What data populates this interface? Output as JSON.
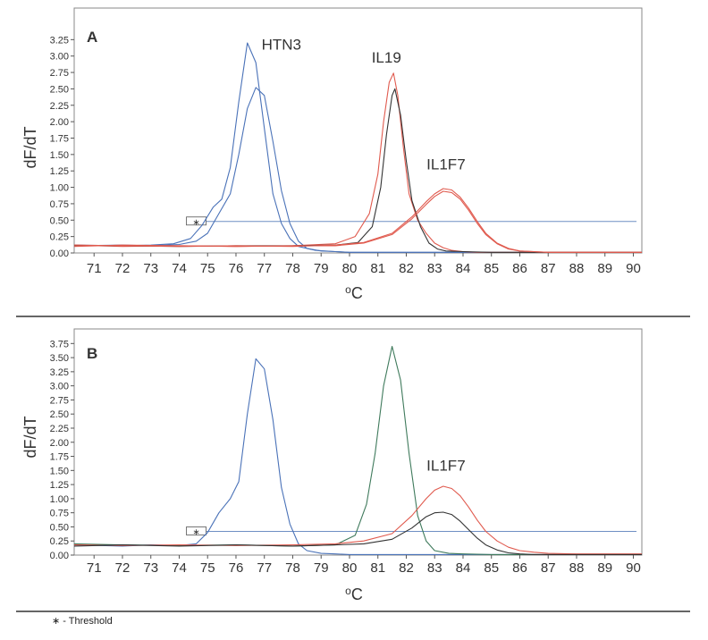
{
  "footnote": {
    "symbol": "∗",
    "text": "- Threshold"
  },
  "chart_data": [
    {
      "type": "line",
      "panel_label": "A",
      "xlabel": "oC",
      "ylabel": "dF/dT",
      "xlim": [
        70.3,
        90.3
      ],
      "ylim": [
        0,
        3.35
      ],
      "x_ticks": [
        71,
        72,
        73,
        74,
        75,
        76,
        77,
        78,
        79,
        80,
        81,
        82,
        83,
        84,
        85,
        86,
        87,
        88,
        89,
        90
      ],
      "y_ticks": [
        "0.00",
        "0.25",
        "0.50",
        "0.75",
        "1.00",
        "1.25",
        "1.50",
        "1.75",
        "2.00",
        "2.25",
        "2.50",
        "2.75",
        "3.00",
        "3.25"
      ],
      "threshold": {
        "y": 0.48,
        "marker": "∗",
        "marker_x": 74.6
      },
      "annotations": [
        {
          "text": "HTN3",
          "x": 77.6,
          "y": 3.1
        },
        {
          "text": "IL19",
          "x": 81.3,
          "y": 2.9
        },
        {
          "text": "IL1F7",
          "x": 83.4,
          "y": 1.27
        }
      ],
      "series": [
        {
          "color": "#4a72b8",
          "x": [
            70.3,
            72,
            73,
            73.8,
            74.4,
            74.8,
            75.2,
            75.5,
            75.8,
            76.1,
            76.4,
            76.7,
            77.0,
            77.3,
            77.6,
            77.9,
            78.2,
            78.8,
            79.5,
            80,
            82,
            84,
            86,
            88,
            90.3
          ],
          "y": [
            0.12,
            0.11,
            0.12,
            0.14,
            0.22,
            0.42,
            0.7,
            0.82,
            1.3,
            2.3,
            3.2,
            2.9,
            1.9,
            0.9,
            0.45,
            0.22,
            0.1,
            0.04,
            0.02,
            0.01,
            0.01,
            0.01,
            0.01,
            0.01,
            0.01
          ]
        },
        {
          "color": "#4a72b8",
          "x": [
            70.3,
            72,
            73,
            74,
            74.6,
            75.0,
            75.4,
            75.8,
            76.1,
            76.4,
            76.7,
            77.0,
            77.3,
            77.6,
            77.9,
            78.2,
            78.5,
            79.0,
            79.5,
            80,
            82,
            84,
            86,
            88,
            90.3
          ],
          "y": [
            0.11,
            0.12,
            0.11,
            0.13,
            0.18,
            0.3,
            0.6,
            0.9,
            1.5,
            2.2,
            2.52,
            2.4,
            1.7,
            0.95,
            0.45,
            0.18,
            0.07,
            0.03,
            0.02,
            0.01,
            0.01,
            0.01,
            0.01,
            0.01,
            0.01
          ]
        },
        {
          "color": "#e05a4e",
          "x": [
            70.3,
            72,
            74,
            76,
            78,
            79.5,
            80.2,
            80.7,
            81.0,
            81.2,
            81.4,
            81.55,
            81.7,
            81.9,
            82.1,
            82.4,
            82.7,
            83.0,
            83.3,
            83.6,
            84.0,
            84.5,
            85.0,
            85.5,
            86,
            87,
            88,
            90.3
          ],
          "y": [
            0.12,
            0.1,
            0.11,
            0.1,
            0.11,
            0.14,
            0.25,
            0.6,
            1.2,
            2.0,
            2.6,
            2.74,
            2.4,
            1.6,
            0.9,
            0.5,
            0.3,
            0.15,
            0.08,
            0.04,
            0.02,
            0.01,
            0.01,
            0.01,
            0.01,
            0.01,
            0.01,
            0.01
          ]
        },
        {
          "color": "#333333",
          "x": [
            70.3,
            72,
            74,
            76,
            78,
            79.5,
            80.3,
            80.8,
            81.1,
            81.3,
            81.5,
            81.6,
            81.8,
            82.0,
            82.2,
            82.5,
            82.8,
            83.1,
            83.4,
            84.0,
            85,
            86,
            88,
            90.3
          ],
          "y": [
            0.11,
            0.11,
            0.1,
            0.11,
            0.11,
            0.12,
            0.16,
            0.4,
            1.0,
            1.8,
            2.4,
            2.5,
            2.1,
            1.4,
            0.8,
            0.4,
            0.15,
            0.06,
            0.03,
            0.02,
            0.01,
            0.01,
            0.01,
            0.01
          ]
        },
        {
          "color": "#e05a4e",
          "x": [
            70.3,
            72,
            74,
            76,
            78,
            79.5,
            80.5,
            81.5,
            82.2,
            82.7,
            83.0,
            83.3,
            83.6,
            83.9,
            84.2,
            84.5,
            84.8,
            85.2,
            85.6,
            86.0,
            86.5,
            87,
            88,
            90.3
          ],
          "y": [
            0.12,
            0.11,
            0.1,
            0.11,
            0.1,
            0.12,
            0.16,
            0.3,
            0.55,
            0.78,
            0.9,
            0.98,
            0.96,
            0.85,
            0.68,
            0.48,
            0.3,
            0.15,
            0.07,
            0.03,
            0.02,
            0.01,
            0.01,
            0.01
          ]
        },
        {
          "color": "#e05a4e",
          "x": [
            70.3,
            72,
            74,
            76,
            78,
            79.5,
            80.5,
            81.5,
            82.2,
            82.7,
            83.0,
            83.3,
            83.6,
            83.9,
            84.2,
            84.5,
            84.8,
            85.2,
            85.6,
            86.0,
            86.5,
            87,
            88,
            90.3
          ],
          "y": [
            0.1,
            0.12,
            0.11,
            0.1,
            0.11,
            0.11,
            0.15,
            0.28,
            0.52,
            0.74,
            0.86,
            0.94,
            0.92,
            0.82,
            0.65,
            0.45,
            0.28,
            0.14,
            0.06,
            0.03,
            0.02,
            0.01,
            0.01,
            0.01
          ]
        }
      ]
    },
    {
      "type": "line",
      "panel_label": "B",
      "xlabel": "oC",
      "ylabel": "dF/dT",
      "xlim": [
        70.3,
        90.3
      ],
      "ylim": [
        0,
        3.85
      ],
      "x_ticks": [
        71,
        72,
        73,
        74,
        75,
        76,
        77,
        78,
        79,
        80,
        81,
        82,
        83,
        84,
        85,
        86,
        87,
        88,
        89,
        90
      ],
      "y_ticks": [
        "0.00",
        "0.25",
        "0.50",
        "0.75",
        "1.00",
        "1.25",
        "1.50",
        "1.75",
        "2.00",
        "2.25",
        "2.50",
        "2.75",
        "3.00",
        "3.25",
        "3.50",
        "3.75"
      ],
      "threshold": {
        "y": 0.42,
        "marker": "∗",
        "marker_x": 74.6
      },
      "annotations": [
        {
          "text": "IL1F7",
          "x": 83.4,
          "y": 1.5
        }
      ],
      "series": [
        {
          "color": "#4a72b8",
          "x": [
            70.3,
            72,
            73,
            74,
            74.6,
            75.0,
            75.4,
            75.8,
            76.1,
            76.4,
            76.7,
            77.0,
            77.3,
            77.6,
            77.9,
            78.2,
            78.5,
            79.0,
            79.5,
            80,
            82,
            84,
            86,
            88,
            90.3
          ],
          "y": [
            0.18,
            0.16,
            0.18,
            0.17,
            0.2,
            0.4,
            0.75,
            1.0,
            1.3,
            2.5,
            3.48,
            3.3,
            2.4,
            1.2,
            0.55,
            0.2,
            0.08,
            0.03,
            0.02,
            0.01,
            0.01,
            0.01,
            0.01,
            0.01,
            0.01
          ]
        },
        {
          "color": "#3f7a5c",
          "x": [
            70.3,
            72,
            74,
            76,
            78,
            79.5,
            80.2,
            80.6,
            80.9,
            81.2,
            81.5,
            81.8,
            82.1,
            82.4,
            82.7,
            83.0,
            83.5,
            84,
            85,
            86,
            88,
            90.3
          ],
          "y": [
            0.2,
            0.18,
            0.17,
            0.18,
            0.16,
            0.18,
            0.35,
            0.9,
            1.8,
            3.0,
            3.7,
            3.1,
            1.8,
            0.7,
            0.25,
            0.08,
            0.03,
            0.02,
            0.01,
            0.01,
            0.01,
            0.01
          ]
        },
        {
          "color": "#e05a4e",
          "x": [
            70.3,
            72,
            74,
            76,
            78,
            79.5,
            80.5,
            81.5,
            82.2,
            82.7,
            83.0,
            83.3,
            83.6,
            83.9,
            84.2,
            84.5,
            84.8,
            85.2,
            85.6,
            86.0,
            86.5,
            87,
            88,
            90.3
          ],
          "y": [
            0.18,
            0.17,
            0.18,
            0.17,
            0.18,
            0.2,
            0.25,
            0.38,
            0.7,
            1.0,
            1.15,
            1.22,
            1.18,
            1.05,
            0.85,
            0.62,
            0.42,
            0.25,
            0.14,
            0.08,
            0.05,
            0.03,
            0.02,
            0.02
          ]
        },
        {
          "color": "#333333",
          "x": [
            70.3,
            72,
            74,
            76,
            78,
            79.5,
            80.5,
            81.5,
            82.2,
            82.7,
            83.0,
            83.3,
            83.6,
            83.9,
            84.2,
            84.5,
            84.8,
            85.2,
            85.6,
            86.0,
            86.5,
            87,
            88,
            90.3
          ],
          "y": [
            0.16,
            0.18,
            0.16,
            0.18,
            0.16,
            0.18,
            0.2,
            0.28,
            0.48,
            0.68,
            0.75,
            0.76,
            0.72,
            0.6,
            0.45,
            0.3,
            0.18,
            0.09,
            0.04,
            0.02,
            0.01,
            0.01,
            0.01,
            0.01
          ]
        }
      ]
    }
  ]
}
